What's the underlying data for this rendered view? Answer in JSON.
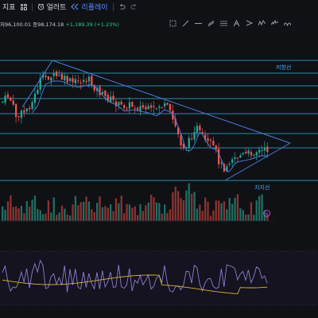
{
  "toolbar": {
    "indicators_label": "지표",
    "alert_label": "얼러트",
    "replay_label": "리플레이"
  },
  "ohlc": {
    "prefix": "저",
    "low": "96,100.01",
    "close_prefix": "종",
    "close": "98,174.18",
    "change": "+1,189.39 (+1.23%)"
  },
  "levels": {
    "resistance_label": "저항선",
    "support_label": "지지선"
  },
  "colors": {
    "up": "#26a69a",
    "down": "#ef5350",
    "trendline": "#4a7fe0",
    "level_line": "#31b3e0",
    "rsi_line": "#8a7fd6",
    "rsi_ma": "#d6b23a",
    "replay_accent": "#5b8cff"
  },
  "icons": [
    "undo-icon",
    "redo-icon",
    "layout-grid-icon",
    "alert-clock-icon",
    "replay-icon"
  ]
}
